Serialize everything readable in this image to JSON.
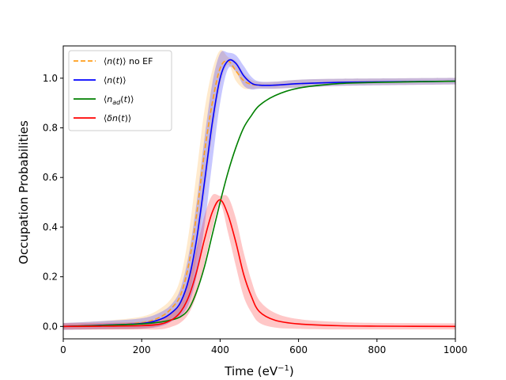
{
  "chart_data": {
    "type": "line",
    "title": "",
    "xlabel": "Time (eV",
    "xlabel_sup": "−1",
    "xlabel_close": ")",
    "ylabel": "Occupation Probabilities",
    "xlim": [
      0,
      1000
    ],
    "ylim": [
      -0.05,
      1.13
    ],
    "xticks": [
      0,
      200,
      400,
      600,
      800,
      1000
    ],
    "xtick_labels": [
      "0",
      "200",
      "400",
      "600",
      "800",
      "1000"
    ],
    "yticks": [
      0.0,
      0.2,
      0.4,
      0.6,
      0.8,
      1.0
    ],
    "ytick_labels": [
      "0.0",
      "0.2",
      "0.4",
      "0.6",
      "0.8",
      "1.0"
    ],
    "grid": false,
    "legend_position": "top-left",
    "series": [
      {
        "name": "⟨n(t)⟩ no EF",
        "label_parts": [
          "⟨",
          "n",
          "(",
          "t",
          ")⟩ no EF"
        ],
        "color": "#ff9f1c",
        "dash": true,
        "band": true,
        "x": [
          0,
          100,
          200,
          250,
          280,
          300,
          320,
          340,
          360,
          380,
          400,
          420,
          440,
          460,
          480,
          500,
          540,
          600,
          700,
          800,
          1000
        ],
        "y": [
          0.0,
          0.005,
          0.015,
          0.04,
          0.08,
          0.13,
          0.25,
          0.45,
          0.7,
          0.9,
          1.04,
          1.07,
          1.03,
          0.99,
          0.975,
          0.972,
          0.972,
          0.978,
          0.983,
          0.985,
          0.988
        ]
      },
      {
        "name": "⟨n(t)⟩",
        "label_parts": [
          "⟨",
          "n",
          "(",
          "t",
          ")⟩"
        ],
        "color": "#0000ff",
        "dash": false,
        "band": true,
        "x": [
          0,
          100,
          200,
          250,
          280,
          300,
          320,
          340,
          360,
          380,
          400,
          420,
          440,
          460,
          480,
          500,
          540,
          600,
          700,
          800,
          1000
        ],
        "y": [
          0.0,
          0.005,
          0.012,
          0.03,
          0.06,
          0.1,
          0.19,
          0.35,
          0.58,
          0.82,
          1.0,
          1.07,
          1.06,
          1.01,
          0.98,
          0.972,
          0.972,
          0.978,
          0.983,
          0.985,
          0.988
        ]
      },
      {
        "name": "⟨n_ad(t)⟩",
        "label_parts": [
          "⟨",
          "n",
          "ad",
          "(",
          "t",
          ")⟩"
        ],
        "color": "#008000",
        "dash": false,
        "band": false,
        "x": [
          0,
          100,
          200,
          250,
          280,
          300,
          320,
          340,
          360,
          380,
          400,
          420,
          440,
          460,
          480,
          500,
          540,
          600,
          700,
          800,
          1000
        ],
        "y": [
          0.0,
          0.004,
          0.01,
          0.018,
          0.028,
          0.04,
          0.07,
          0.14,
          0.24,
          0.37,
          0.5,
          0.62,
          0.72,
          0.8,
          0.85,
          0.89,
          0.93,
          0.96,
          0.978,
          0.983,
          0.988
        ]
      },
      {
        "name": "⟨δn(t)⟩",
        "label_parts": [
          "⟨",
          "δn",
          "(",
          "t",
          ")⟩"
        ],
        "color": "#ff0000",
        "dash": false,
        "band": true,
        "x": [
          0,
          100,
          200,
          250,
          280,
          300,
          320,
          340,
          360,
          380,
          400,
          420,
          440,
          460,
          480,
          500,
          540,
          600,
          700,
          800,
          1000
        ],
        "y": [
          0.0,
          0.001,
          0.003,
          0.01,
          0.03,
          0.06,
          0.12,
          0.22,
          0.35,
          0.46,
          0.51,
          0.45,
          0.34,
          0.21,
          0.12,
          0.06,
          0.025,
          0.01,
          0.003,
          0.001,
          0.0
        ]
      }
    ]
  }
}
